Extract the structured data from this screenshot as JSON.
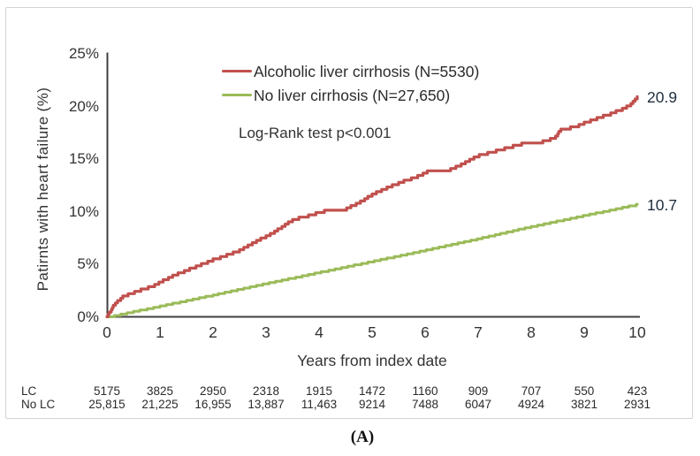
{
  "figure": {
    "caption": "(A)"
  },
  "chart_data": {
    "type": "line",
    "subtype": "kaplan-meier-cumulative-incidence",
    "title": "",
    "xlabel": "Years from index date",
    "ylabel": "Patirnts with heart failure (%)",
    "xlim": [
      0,
      10
    ],
    "ylim": [
      0,
      25
    ],
    "grid": false,
    "legend_position": "top-center-inside",
    "x_ticks": [
      "0",
      "1",
      "2",
      "3",
      "4",
      "5",
      "6",
      "7",
      "8",
      "9",
      "10"
    ],
    "y_ticks": [
      "0%",
      "5%",
      "10%",
      "15%",
      "20%",
      "25%"
    ],
    "annotation": "Log-Rank test p<0.001",
    "series": [
      {
        "name": "Alcoholic liver cirrhosis (N=5530)",
        "color": "#C0504D",
        "end_label": "20.9",
        "end_value": 20.9,
        "points": [
          [
            0,
            0
          ],
          [
            0.05,
            0.55
          ],
          [
            0.1,
            1.0
          ],
          [
            0.2,
            1.6
          ],
          [
            0.3,
            2.0
          ],
          [
            0.5,
            2.4
          ],
          [
            0.7,
            2.75
          ],
          [
            0.9,
            3.1
          ],
          [
            1.0,
            3.4
          ],
          [
            1.25,
            4.0
          ],
          [
            1.5,
            4.5
          ],
          [
            1.75,
            5.0
          ],
          [
            2.0,
            5.5
          ],
          [
            2.25,
            5.95
          ],
          [
            2.5,
            6.4
          ],
          [
            2.75,
            7.1
          ],
          [
            3.0,
            7.75
          ],
          [
            3.2,
            8.3
          ],
          [
            3.5,
            9.3
          ],
          [
            3.8,
            9.7
          ],
          [
            4.0,
            10.0
          ],
          [
            4.15,
            10.2
          ],
          [
            4.5,
            10.3
          ],
          [
            4.8,
            11.1
          ],
          [
            5.0,
            11.7
          ],
          [
            5.3,
            12.4
          ],
          [
            5.6,
            13.0
          ],
          [
            5.9,
            13.5
          ],
          [
            6.05,
            13.9
          ],
          [
            6.45,
            14.05
          ],
          [
            6.7,
            14.6
          ],
          [
            7.0,
            15.4
          ],
          [
            7.4,
            15.95
          ],
          [
            7.8,
            16.5
          ],
          [
            8.2,
            16.7
          ],
          [
            8.45,
            17.1
          ],
          [
            8.55,
            17.9
          ],
          [
            8.8,
            18.1
          ],
          [
            9.1,
            18.7
          ],
          [
            9.45,
            19.3
          ],
          [
            9.7,
            19.8
          ],
          [
            9.85,
            20.15
          ],
          [
            10,
            20.9
          ]
        ]
      },
      {
        "name": "No liver cirrhosis (N=27,650)",
        "color": "#9BBB59",
        "end_label": "10.7",
        "end_value": 10.7,
        "points": [
          [
            0,
            0
          ],
          [
            1,
            1.05
          ],
          [
            2,
            2.1
          ],
          [
            3,
            3.2
          ],
          [
            4,
            4.25
          ],
          [
            5,
            5.3
          ],
          [
            6,
            6.35
          ],
          [
            7,
            7.45
          ],
          [
            8,
            8.6
          ],
          [
            9,
            9.65
          ],
          [
            10,
            10.7
          ]
        ]
      }
    ],
    "risk_table": {
      "rows": [
        {
          "label": "LC",
          "values": [
            "5175",
            "3825",
            "2950",
            "2318",
            "1915",
            "1472",
            "1160",
            "909",
            "707",
            "550",
            "423"
          ]
        },
        {
          "label": "No LC",
          "values": [
            "25,815",
            "21,225",
            "16,955",
            "13,887",
            "11,463",
            "9214",
            "7488",
            "6047",
            "4924",
            "3821",
            "2931"
          ]
        }
      ]
    },
    "colors": {
      "axis": "#3f3f3f",
      "border": "#d3d3d3",
      "text": "#333333"
    }
  }
}
